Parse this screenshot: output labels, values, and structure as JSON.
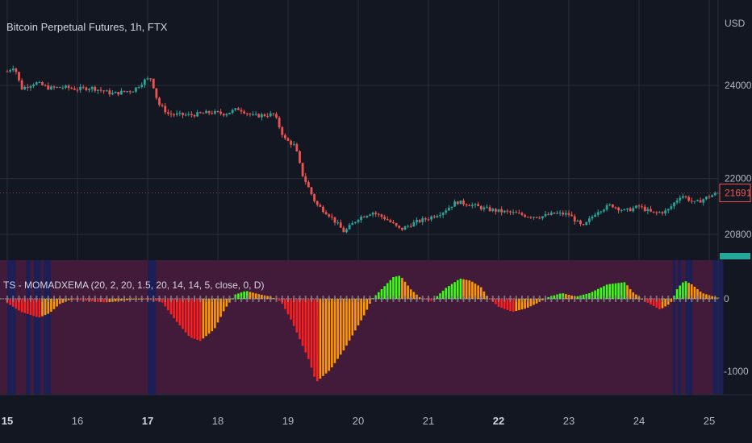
{
  "chart_data": {
    "type": "candlestick",
    "title": "Bitcoin Perpetual Futures, 1h, FTX",
    "currency_label": "USD",
    "price_ticks": [
      "24000",
      "22000",
      "20800"
    ],
    "last_price": "21691",
    "x_ticks": [
      "15",
      "16",
      "17",
      "18",
      "19",
      "20",
      "21",
      "22",
      "23",
      "24",
      "25"
    ],
    "x_tick_bold": [
      "15",
      "17",
      "22"
    ],
    "price_close_path": [
      [
        15.0,
        24300
      ],
      [
        15.1,
        24420
      ],
      [
        15.2,
        23930
      ],
      [
        15.4,
        24060
      ],
      [
        15.6,
        23940
      ],
      [
        15.8,
        23960
      ],
      [
        16.0,
        23920
      ],
      [
        16.2,
        23950
      ],
      [
        16.5,
        23820
      ],
      [
        16.8,
        23900
      ],
      [
        16.95,
        24100
      ],
      [
        17.05,
        24160
      ],
      [
        17.15,
        23610
      ],
      [
        17.3,
        23380
      ],
      [
        17.6,
        23360
      ],
      [
        17.9,
        23420
      ],
      [
        18.1,
        23390
      ],
      [
        18.3,
        23500
      ],
      [
        18.5,
        23340
      ],
      [
        18.8,
        23380
      ],
      [
        18.95,
        22850
      ],
      [
        19.1,
        22700
      ],
      [
        19.2,
        22100
      ],
      [
        19.4,
        21450
      ],
      [
        19.6,
        21200
      ],
      [
        19.8,
        20850
      ],
      [
        20.0,
        21150
      ],
      [
        20.2,
        21280
      ],
      [
        20.4,
        21130
      ],
      [
        20.6,
        20900
      ],
      [
        20.8,
        21050
      ],
      [
        21.0,
        21150
      ],
      [
        21.2,
        21280
      ],
      [
        21.4,
        21500
      ],
      [
        21.6,
        21440
      ],
      [
        21.8,
        21350
      ],
      [
        22.0,
        21300
      ],
      [
        22.2,
        21260
      ],
      [
        22.4,
        21200
      ],
      [
        22.6,
        21180
      ],
      [
        22.8,
        21250
      ],
      [
        23.0,
        21230
      ],
      [
        23.2,
        20950
      ],
      [
        23.4,
        21300
      ],
      [
        23.6,
        21430
      ],
      [
        23.8,
        21300
      ],
      [
        24.0,
        21400
      ],
      [
        24.2,
        21250
      ],
      [
        24.4,
        21300
      ],
      [
        24.6,
        21650
      ],
      [
        24.8,
        21470
      ],
      [
        25.0,
        21620
      ],
      [
        25.15,
        21700
      ]
    ],
    "indicator": {
      "name": "TS - MOMADXEMA (20, 2, 20, 1.5, 20, 14, 14, 5, close, 0, D)",
      "y_ticks": [
        "0",
        "-1000"
      ],
      "y_values": [
        0,
        -1000
      ],
      "shape_path": [
        [
          15.0,
          -60
        ],
        [
          15.2,
          -180
        ],
        [
          15.45,
          -260
        ],
        [
          15.6,
          -200
        ],
        [
          15.75,
          -70
        ],
        [
          15.9,
          -10
        ],
        [
          16.1,
          -25
        ],
        [
          16.4,
          -50
        ],
        [
          16.7,
          -20
        ],
        [
          16.9,
          0
        ],
        [
          17.2,
          -40
        ],
        [
          17.4,
          -300
        ],
        [
          17.6,
          -530
        ],
        [
          17.75,
          -580
        ],
        [
          17.95,
          -420
        ],
        [
          18.1,
          -140
        ],
        [
          18.25,
          60
        ],
        [
          18.4,
          110
        ],
        [
          18.6,
          60
        ],
        [
          18.75,
          30
        ],
        [
          18.9,
          -40
        ],
        [
          19.05,
          -300
        ],
        [
          19.3,
          -850
        ],
        [
          19.4,
          -1150
        ],
        [
          19.6,
          -980
        ],
        [
          19.8,
          -700
        ],
        [
          19.95,
          -450
        ],
        [
          20.1,
          -200
        ],
        [
          20.2,
          0
        ],
        [
          20.35,
          150
        ],
        [
          20.5,
          300
        ],
        [
          20.6,
          320
        ],
        [
          20.75,
          130
        ],
        [
          20.9,
          0
        ],
        [
          21.05,
          -30
        ],
        [
          21.25,
          150
        ],
        [
          21.45,
          280
        ],
        [
          21.6,
          250
        ],
        [
          21.75,
          160
        ],
        [
          21.85,
          20
        ],
        [
          22.0,
          -110
        ],
        [
          22.2,
          -180
        ],
        [
          22.4,
          -130
        ],
        [
          22.55,
          -60
        ],
        [
          22.7,
          20
        ],
        [
          22.9,
          80
        ],
        [
          23.1,
          30
        ],
        [
          23.3,
          80
        ],
        [
          23.55,
          200
        ],
        [
          23.8,
          230
        ],
        [
          23.9,
          100
        ],
        [
          24.1,
          -40
        ],
        [
          24.3,
          -150
        ],
        [
          24.45,
          -60
        ],
        [
          24.55,
          150
        ],
        [
          24.65,
          250
        ],
        [
          24.75,
          200
        ],
        [
          24.9,
          80
        ],
        [
          25.1,
          20
        ]
      ],
      "blue_regions": [
        [
          15.0,
          15.12
        ],
        [
          15.27,
          15.33
        ],
        [
          15.38,
          15.48
        ],
        [
          15.52,
          15.62
        ],
        [
          17.0,
          17.12
        ],
        [
          24.48,
          24.52
        ],
        [
          24.55,
          24.6
        ],
        [
          24.66,
          24.76
        ],
        [
          25.05,
          25.2
        ]
      ],
      "colors": {
        "strong_up": "#39ff14",
        "weak": "#ff9800",
        "strong_down": "#ff1e1e",
        "panel_bg": "#431b3a",
        "blue_region": "#1c1f55"
      }
    },
    "colors": {
      "up": "#26a69a",
      "down": "#ef5350",
      "grid": "#2a2e39",
      "axis_text": "#b2b5be"
    }
  }
}
